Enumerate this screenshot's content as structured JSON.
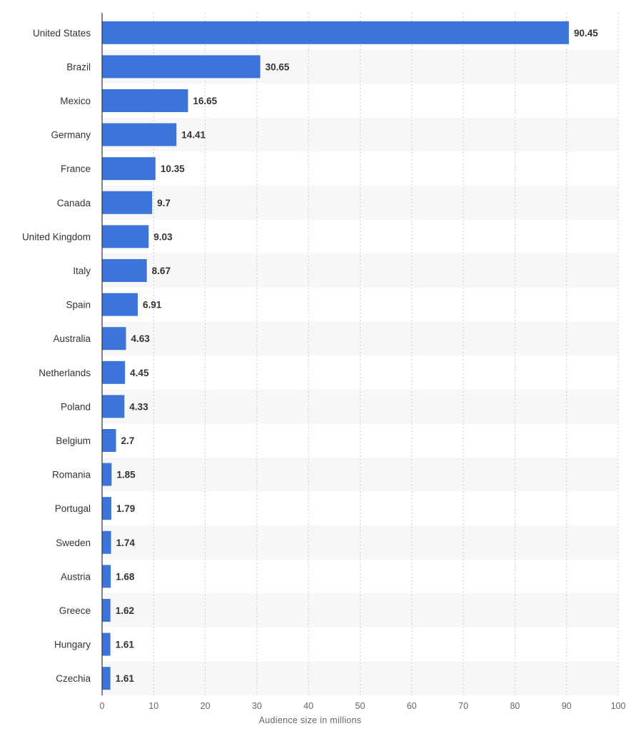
{
  "chart_data": {
    "type": "bar",
    "orientation": "horizontal",
    "xlabel": "Audience size in millions",
    "xlim": [
      0,
      100
    ],
    "xticks": [
      0,
      10,
      20,
      30,
      40,
      50,
      60,
      70,
      80,
      90,
      100
    ],
    "grid": true,
    "bar_color": "#3d74d9",
    "categories": [
      "United States",
      "Brazil",
      "Mexico",
      "Germany",
      "France",
      "Canada",
      "United Kingdom",
      "Italy",
      "Spain",
      "Australia",
      "Netherlands",
      "Poland",
      "Belgium",
      "Romania",
      "Portugal",
      "Sweden",
      "Austria",
      "Greece",
      "Hungary",
      "Czechia"
    ],
    "values": [
      90.45,
      30.65,
      16.65,
      14.41,
      10.35,
      9.7,
      9.03,
      8.67,
      6.91,
      4.63,
      4.45,
      4.33,
      2.7,
      1.85,
      1.79,
      1.74,
      1.68,
      1.62,
      1.61,
      1.61
    ],
    "value_labels": [
      "90.45",
      "30.65",
      "16.65",
      "14.41",
      "10.35",
      "9.7",
      "9.03",
      "8.67",
      "6.91",
      "4.63",
      "4.45",
      "4.33",
      "2.7",
      "1.85",
      "1.79",
      "1.74",
      "1.68",
      "1.62",
      "1.61",
      "1.61"
    ]
  }
}
